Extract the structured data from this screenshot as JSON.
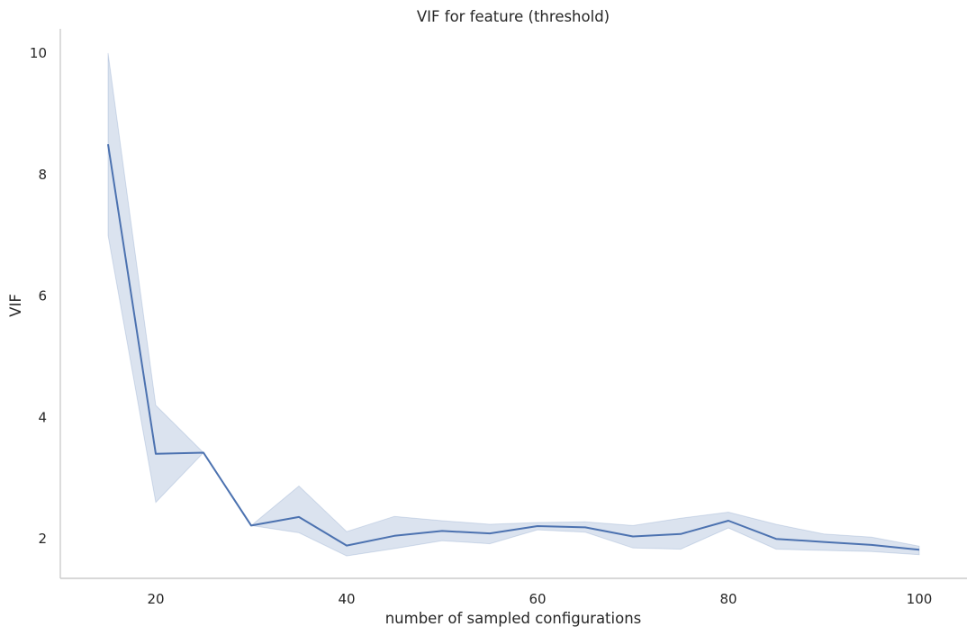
{
  "chart_data": {
    "type": "line",
    "title": "VIF for feature (threshold)",
    "xlabel": "number of sampled configurations",
    "ylabel": "VIF",
    "xlim": [
      10,
      105
    ],
    "ylim": [
      1.35,
      10.4
    ],
    "xticks": [
      20,
      40,
      60,
      80,
      100
    ],
    "yticks": [
      2,
      4,
      6,
      8,
      10
    ],
    "grid": false,
    "colors": {
      "line": "#4c72b0",
      "band": "#4c72b0",
      "axis": "#cccccc",
      "text": "#262626"
    },
    "series": [
      {
        "x": [
          15,
          20,
          25,
          30,
          35,
          40,
          45,
          50,
          55,
          60,
          65,
          70,
          75,
          80,
          85,
          90,
          95,
          100
        ],
        "y": [
          8.5,
          3.4,
          3.42,
          2.22,
          2.36,
          1.89,
          2.05,
          2.13,
          2.09,
          2.21,
          2.19,
          2.04,
          2.08,
          2.3,
          2.0,
          1.95,
          1.9,
          1.82
        ],
        "ci_lower": [
          7.0,
          2.6,
          3.42,
          2.22,
          2.1,
          1.72,
          1.84,
          1.97,
          1.92,
          2.15,
          2.11,
          1.85,
          1.83,
          2.18,
          1.83,
          1.81,
          1.79,
          1.74
        ],
        "ci_upper": [
          10.0,
          4.2,
          3.42,
          2.22,
          2.87,
          2.12,
          2.37,
          2.3,
          2.24,
          2.27,
          2.28,
          2.22,
          2.34,
          2.44,
          2.24,
          2.08,
          2.03,
          1.88
        ]
      }
    ]
  }
}
